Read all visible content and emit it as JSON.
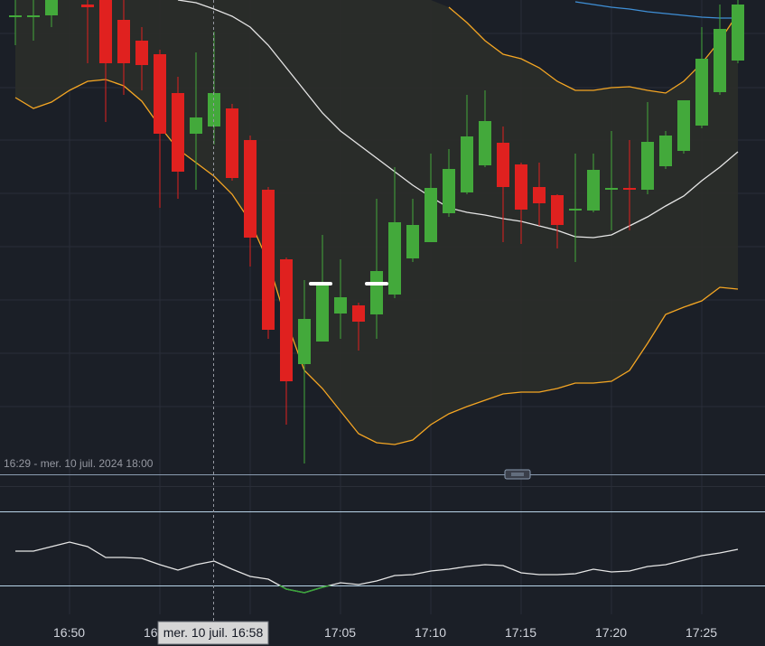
{
  "chart_data": [
    {
      "type": "candlestick",
      "range_label": "16:29 - mer. 10 juil. 2024 18:00",
      "crosshair_label": "mer. 10 juil. 16:58",
      "categories": [
        null,
        null,
        null,
        "16:50",
        null,
        null,
        null,
        null,
        "16",
        null,
        null,
        null,
        null,
        null,
        null,
        null,
        null,
        null,
        "17:05",
        null,
        null,
        null,
        null,
        "17:10",
        null,
        null,
        null,
        null,
        "17:15",
        null,
        null,
        null,
        null,
        "17:20",
        null,
        null,
        null,
        null,
        "17:25",
        null,
        null
      ],
      "open": [
        496,
        496,
        498,
        null,
        510,
        515,
        493,
        470,
        455,
        412,
        367,
        375,
        395,
        360,
        305,
        228,
        112,
        137,
        168,
        177,
        167,
        189,
        229,
        247,
        279,
        302,
        332,
        357,
        333,
        308,
        299,
        282,
        282,
        305,
        307,
        305,
        331,
        348,
        376,
        413,
        448
      ],
      "high": [
        515,
        515,
        515,
        null,
        515,
        515,
        515,
        485,
        460,
        430,
        457,
        480,
        400,
        365,
        308,
        230,
        205,
        255,
        228,
        180,
        295,
        330,
        295,
        345,
        350,
        410,
        415,
        375,
        335,
        335,
        300,
        345,
        345,
        370,
        360,
        402,
        370,
        400,
        485,
        510,
        515
      ],
      "low": [
        465,
        470,
        485,
        null,
        445,
        380,
        410,
        415,
        285,
        295,
        305,
        355,
        315,
        220,
        140,
        45,
        2,
        137,
        140,
        127,
        140,
        185,
        225,
        247,
        275,
        300,
        330,
        247,
        245,
        265,
        240,
        225,
        280,
        260,
        260,
        300,
        328,
        345,
        373,
        410,
        445
      ],
      "close": [
        498,
        498,
        515,
        null,
        507,
        445,
        445,
        443,
        367,
        325,
        385,
        412,
        318,
        252,
        150,
        93,
        162,
        200,
        186,
        159,
        215,
        269,
        266,
        307,
        328,
        364,
        381,
        308,
        283,
        290,
        266,
        284,
        327,
        307,
        305,
        358,
        365,
        404,
        450,
        483,
        510
      ],
      "up_color": "#43a93b",
      "down_color": "#e0211f",
      "ylim": [
        0,
        515
      ],
      "lines": [
        {
          "color": "#f5a623",
          "values": [
            407,
            395,
            402,
            415,
            425,
            427,
            420,
            403,
            375,
            350,
            335,
            320,
            300,
            270,
            225,
            160,
            105,
            85,
            60,
            35,
            25,
            23,
            28,
            45,
            57,
            65,
            72,
            79,
            81,
            81,
            85,
            91,
            91,
            93,
            105,
            135,
            167,
            175,
            182,
            197,
            195
          ]
        },
        {
          "color": "#f5a623",
          "values": [
            null,
            null,
            null,
            null,
            null,
            null,
            null,
            null,
            null,
            null,
            null,
            null,
            null,
            null,
            null,
            null,
            null,
            null,
            null,
            null,
            null,
            null,
            null,
            null,
            507,
            490,
            470,
            455,
            450,
            440,
            425,
            415,
            415,
            418,
            419,
            415,
            412,
            425,
            445,
            470,
            500
          ]
        },
        {
          "color": "#e6e6e6",
          "values": [
            null,
            null,
            null,
            null,
            null,
            null,
            null,
            null,
            null,
            515,
            512,
            505,
            497,
            485,
            465,
            440,
            415,
            390,
            370,
            355,
            340,
            325,
            310,
            297,
            285,
            280,
            277,
            273,
            270,
            265,
            260,
            253,
            252,
            255,
            265,
            275,
            287,
            298,
            315,
            330,
            347
          ]
        },
        {
          "color": "#3f8fd6",
          "values": [
            null,
            null,
            null,
            null,
            null,
            null,
            null,
            null,
            null,
            null,
            null,
            null,
            null,
            null,
            null,
            null,
            null,
            null,
            null,
            null,
            null,
            null,
            null,
            null,
            null,
            null,
            null,
            null,
            null,
            null,
            null,
            513,
            510,
            507,
            505,
            502,
            500,
            498,
            496,
            495,
            495
          ]
        }
      ]
    },
    {
      "type": "line",
      "color": "#e6e6e6",
      "below_color": "#3aa53a",
      "values": [
        80,
        80,
        85,
        90,
        85,
        73,
        73,
        72,
        65,
        59,
        65,
        69,
        60,
        52,
        49,
        38,
        34,
        40,
        45,
        43,
        47,
        53,
        54,
        58,
        60,
        63,
        65,
        64,
        56,
        54,
        54,
        55,
        60,
        57,
        58,
        63,
        65,
        70,
        75,
        78,
        82
      ],
      "levels": [
        124,
        42
      ],
      "level_color": "#b8d4e8",
      "ylim": [
        0,
        150
      ]
    }
  ]
}
